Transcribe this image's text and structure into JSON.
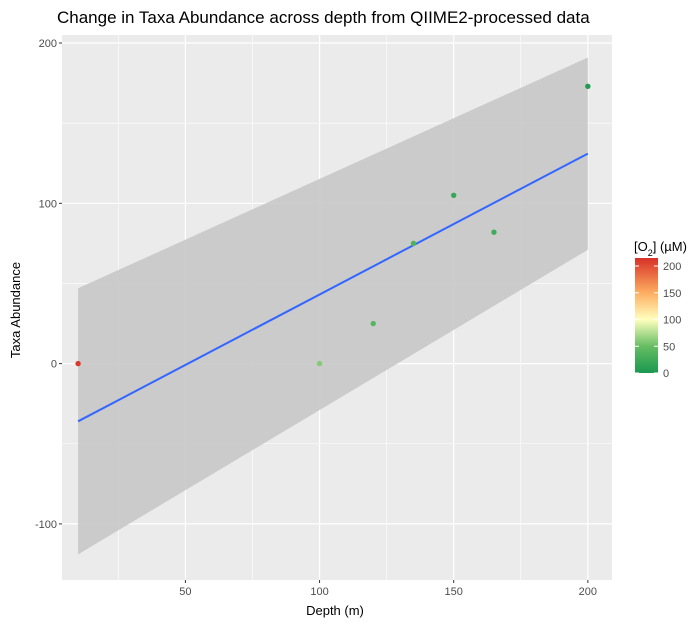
{
  "chart_data": {
    "type": "scatter",
    "title": "Change in Taxa Abundance across depth from QIIME2-processed data",
    "xlabel": "Depth (m)",
    "ylabel": "Taxa Abundance",
    "xlim": [
      4,
      209
    ],
    "ylim": [
      -135,
      205
    ],
    "x_ticks": [
      50,
      100,
      150,
      200
    ],
    "y_ticks": [
      -100,
      0,
      100,
      200
    ],
    "grid": true,
    "points": [
      {
        "x": 10,
        "y": 0,
        "o2": 210
      },
      {
        "x": 100,
        "y": 0,
        "o2": 60
      },
      {
        "x": 120,
        "y": 25,
        "o2": 40
      },
      {
        "x": 135,
        "y": 75,
        "o2": 35
      },
      {
        "x": 150,
        "y": 105,
        "o2": 20
      },
      {
        "x": 165,
        "y": 82,
        "o2": 25
      },
      {
        "x": 200,
        "y": 173,
        "o2": 5
      }
    ],
    "fit": {
      "x": [
        10,
        200
      ],
      "y": [
        -36,
        131
      ],
      "upper": [
        47,
        191
      ],
      "lower": [
        -119,
        71
      ]
    },
    "colors": {
      "panel": "#ebebeb",
      "grid": "#ffffff",
      "fit_line": "#3366ff",
      "ribbon": "#c8c8c8"
    },
    "legend": {
      "title_prefix": "[O",
      "title_subscript": "2",
      "title_suffix": "] (µM)",
      "placement": "right",
      "range": [
        0,
        215
      ],
      "labels": [
        200,
        150,
        100,
        50,
        0
      ],
      "gradient": [
        {
          "value": 0,
          "color": "#1a9850"
        },
        {
          "value": 50,
          "color": "#66bd63"
        },
        {
          "value": 100,
          "color": "#ffffbf"
        },
        {
          "value": 150,
          "color": "#fdae61"
        },
        {
          "value": 215,
          "color": "#d73027"
        }
      ]
    }
  }
}
